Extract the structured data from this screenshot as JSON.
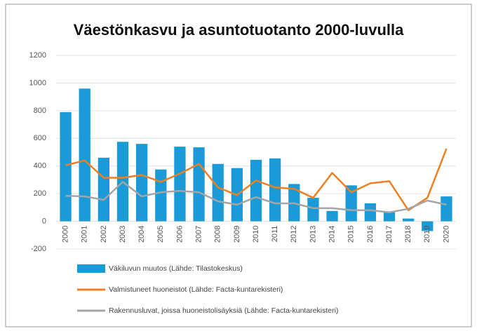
{
  "chart_data": {
    "type": "bar_line",
    "title": "Väestönkasvu ja asuntotuotanto 2000-luvulla",
    "categories": [
      "2000",
      "2001",
      "2002",
      "2003",
      "2004",
      "2005",
      "2006",
      "2007",
      "2008",
      "2009",
      "2010",
      "2011",
      "2012",
      "2013",
      "2014",
      "2015",
      "2016",
      "2017",
      "2018",
      "2019",
      "2020"
    ],
    "series": [
      {
        "name": "Väkiluvun muutos (Lähde: Tilastokeskus)",
        "type": "bar",
        "color": "#1a9bd7",
        "values": [
          790,
          960,
          460,
          575,
          560,
          375,
          540,
          535,
          415,
          385,
          445,
          455,
          270,
          170,
          75,
          260,
          130,
          65,
          20,
          -70,
          180
        ]
      },
      {
        "name": "Valmistuneet huoneistot (Lähde: Facta-kuntarekisteri)",
        "type": "line",
        "color": "#f07f22",
        "values": [
          405,
          440,
          315,
          315,
          335,
          285,
          345,
          415,
          245,
          190,
          295,
          245,
          235,
          170,
          350,
          210,
          275,
          290,
          80,
          170,
          525
        ]
      },
      {
        "name": "Rakennusluvat, joissa huoneistolisäyksiä (Lähde: Facta-kuntarekisteri)",
        "type": "line",
        "color": "#a5a5a5",
        "values": [
          185,
          180,
          155,
          285,
          180,
          210,
          220,
          210,
          145,
          120,
          175,
          130,
          130,
          95,
          95,
          80,
          80,
          65,
          90,
          150,
          120
        ]
      }
    ],
    "ylim": [
      -200,
      1200
    ],
    "yticks": [
      -200,
      0,
      200,
      400,
      600,
      800,
      1000,
      1200
    ],
    "grid": true
  }
}
